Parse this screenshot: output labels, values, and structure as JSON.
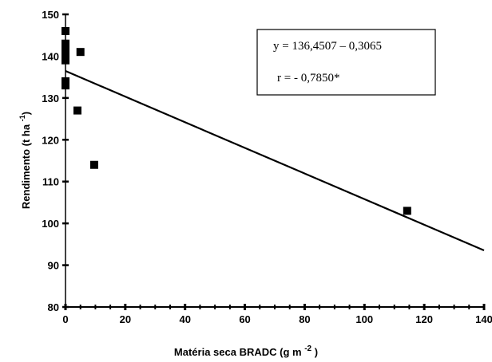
{
  "chart_data": {
    "type": "scatter",
    "x_label": {
      "text": "Matéria seca BRADC (g m",
      "sup": "-2",
      "end": " )"
    },
    "y_label": {
      "text": "Rendimento (t ha",
      "sup": "-1",
      "end": ")"
    },
    "annotations": [
      "y = 136,4507 – 0,3065",
      "r = - 0,7850*"
    ],
    "series": [
      {
        "color": "#000000",
        "x": [
          0,
          0,
          0,
          0,
          0,
          0,
          0,
          0,
          5,
          4,
          9.6,
          114.3
        ],
        "values": [
          146,
          143,
          142,
          141,
          140,
          139,
          134,
          133,
          141,
          127,
          114,
          103
        ]
      }
    ],
    "trend": {
      "color": "#000000",
      "x": [
        0,
        140
      ],
      "values": [
        136.45,
        93.54
      ]
    },
    "xlim": [
      0,
      140
    ],
    "xticks": [
      0,
      20,
      40,
      60,
      80,
      100,
      120,
      140
    ],
    "ylim": [
      80,
      150
    ],
    "yticks": [
      80,
      90,
      100,
      110,
      120,
      130,
      140,
      150
    ]
  }
}
